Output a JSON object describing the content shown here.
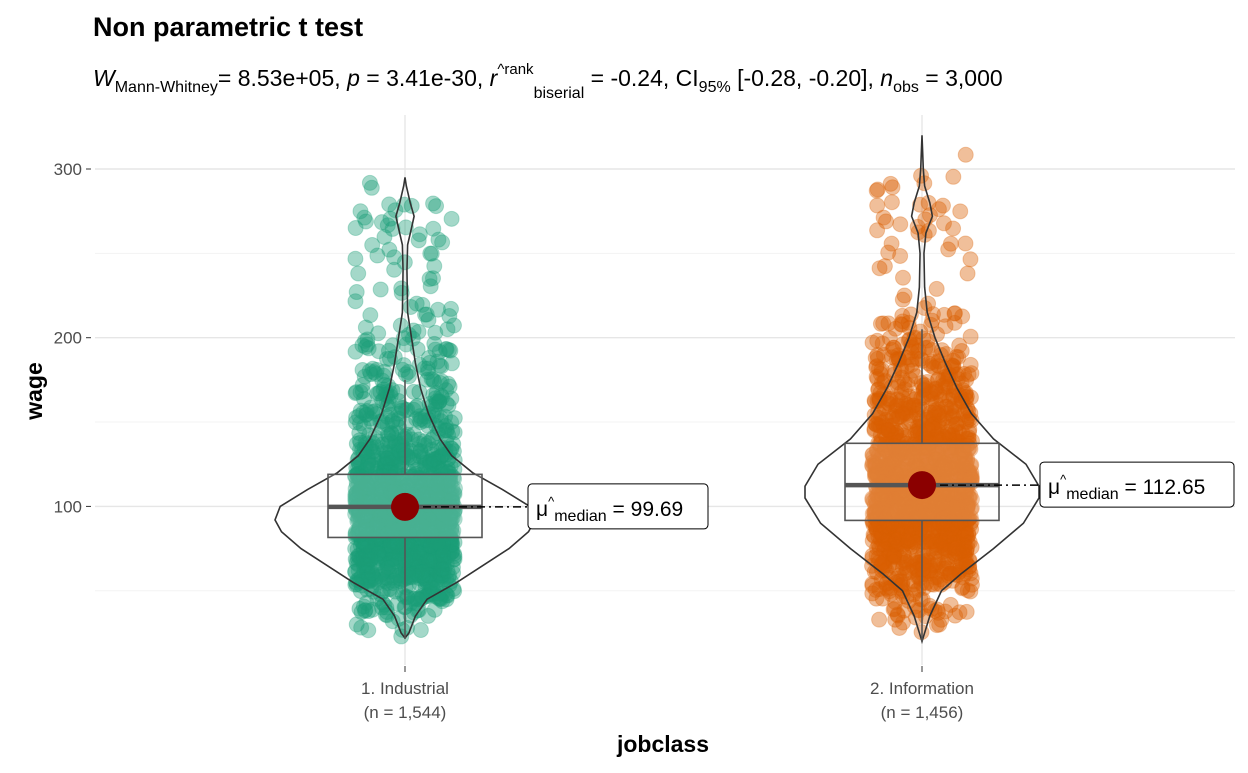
{
  "chart_data": {
    "type": "violin-box-scatter",
    "title": "Non parametric t test",
    "subtitle": {
      "stat_symbol": "W",
      "stat_sub": "Mann-Whitney",
      "stat_value": "= 8.53e+05, ",
      "p_symbol": "p",
      "p_value": " = 3.41e-30, ",
      "effect_symbol": "r",
      "effect_hat": "^",
      "effect_sup": "rank",
      "effect_sub": "biserial",
      "effect_value": " = -0.24, CI",
      "ci_sub": "95%",
      "ci_value": " [-0.28, -0.20], ",
      "n_symbol": "n",
      "n_sub": "obs",
      "n_value": " = 3,000"
    },
    "xlabel": "jobclass",
    "ylabel": "wage",
    "ylim": [
      6,
      332
    ],
    "yticks": [
      100,
      200,
      300
    ],
    "yticks_minor": [
      50,
      150,
      250
    ],
    "grid": true,
    "groups": [
      {
        "name": "1. Industrial",
        "n_label": "(n = 1,544)",
        "n": 1544,
        "color": "#1B9E77",
        "box": {
          "q1": 81.6,
          "median": 99.69,
          "q3": 119.0,
          "whisker_low": 22,
          "whisker_high": 175
        },
        "median_label": {
          "symbol": "μ",
          "hat": "^",
          "sub": "median",
          "value": " = 99.69"
        },
        "violin_profile": [
          [
            22,
            0
          ],
          [
            25,
            0.03
          ],
          [
            35,
            0.08
          ],
          [
            45,
            0.17
          ],
          [
            55,
            0.4
          ],
          [
            65,
            0.6
          ],
          [
            75,
            0.8
          ],
          [
            85,
            0.95
          ],
          [
            92,
            1
          ],
          [
            100,
            0.96
          ],
          [
            110,
            0.75
          ],
          [
            120,
            0.52
          ],
          [
            130,
            0.36
          ],
          [
            140,
            0.27
          ],
          [
            155,
            0.18
          ],
          [
            170,
            0.12
          ],
          [
            185,
            0.08
          ],
          [
            200,
            0.05
          ],
          [
            215,
            0.02
          ],
          [
            240,
            0.015
          ],
          [
            255,
            0.02
          ],
          [
            265,
            0.05
          ],
          [
            272,
            0.07
          ],
          [
            280,
            0.04
          ],
          [
            290,
            0.01
          ],
          [
            295,
            0
          ]
        ]
      },
      {
        "name": "2. Information",
        "n_label": "(n = 1,456)",
        "n": 1456,
        "color": "#D95F02",
        "box": {
          "q1": 91.7,
          "median": 112.65,
          "q3": 137.4,
          "whisker_low": 20,
          "whisker_high": 205
        },
        "median_label": {
          "symbol": "μ",
          "hat": "^",
          "sub": "median",
          "value": " = 112.65"
        },
        "violin_profile": [
          [
            20,
            0
          ],
          [
            25,
            0.02
          ],
          [
            35,
            0.06
          ],
          [
            50,
            0.15
          ],
          [
            60,
            0.3
          ],
          [
            75,
            0.55
          ],
          [
            90,
            0.78
          ],
          [
            105,
            0.9
          ],
          [
            112,
            0.9
          ],
          [
            125,
            0.8
          ],
          [
            140,
            0.55
          ],
          [
            155,
            0.38
          ],
          [
            170,
            0.27
          ],
          [
            185,
            0.18
          ],
          [
            200,
            0.1
          ],
          [
            215,
            0.04
          ],
          [
            230,
            0.02
          ],
          [
            250,
            0.015
          ],
          [
            262,
            0.03
          ],
          [
            272,
            0.08
          ],
          [
            280,
            0.06
          ],
          [
            290,
            0.02
          ],
          [
            300,
            0.01
          ],
          [
            320,
            0
          ]
        ]
      }
    ],
    "median_point_color": "#8B0000"
  }
}
